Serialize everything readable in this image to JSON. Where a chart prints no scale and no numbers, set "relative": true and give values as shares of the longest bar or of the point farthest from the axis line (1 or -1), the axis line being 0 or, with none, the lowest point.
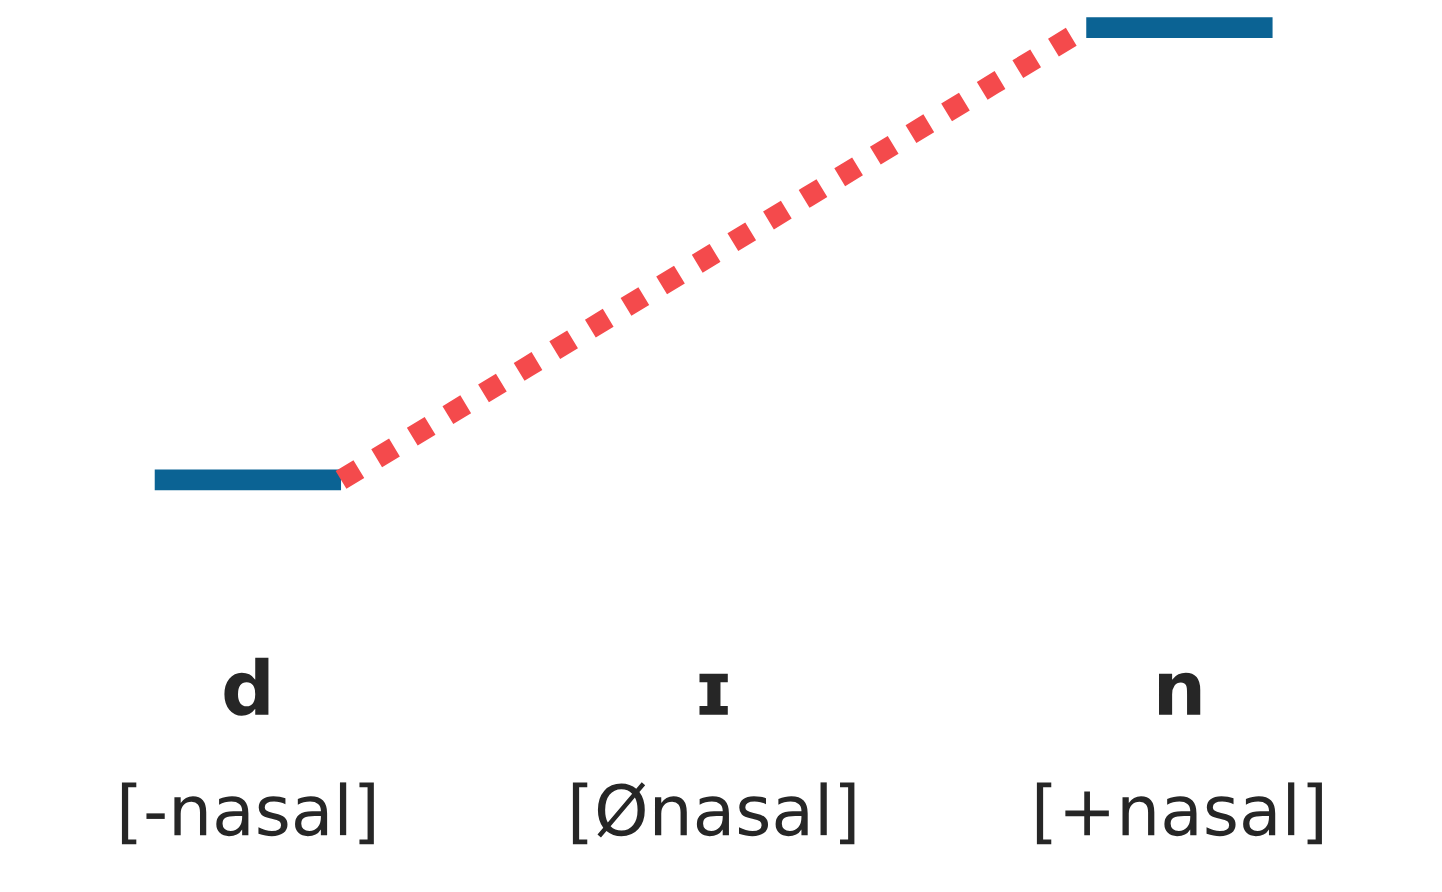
{
  "chart_data": {
    "type": "line",
    "relative": true,
    "grid": false,
    "legend": false,
    "categories": [
      null,
      "d",
      null,
      null,
      null,
      null,
      "ɪ",
      null,
      null,
      null,
      null,
      "n",
      null
    ],
    "annotations": [
      "[-nasal]",
      "[Ønasal]",
      "[+nasal]"
    ],
    "series": [
      {
        "color": "#0b6394",
        "line_style": "solid",
        "values": [
          0,
          0,
          0,
          null,
          null,
          null,
          null,
          null,
          null,
          null,
          1,
          1,
          1
        ]
      },
      {
        "color": "#f44a4c",
        "line_style": "dotted",
        "values": [
          null,
          null,
          0,
          0.125,
          0.25,
          0.375,
          0.5,
          0.625,
          0.75,
          0.875,
          1,
          null,
          null
        ]
      }
    ]
  }
}
